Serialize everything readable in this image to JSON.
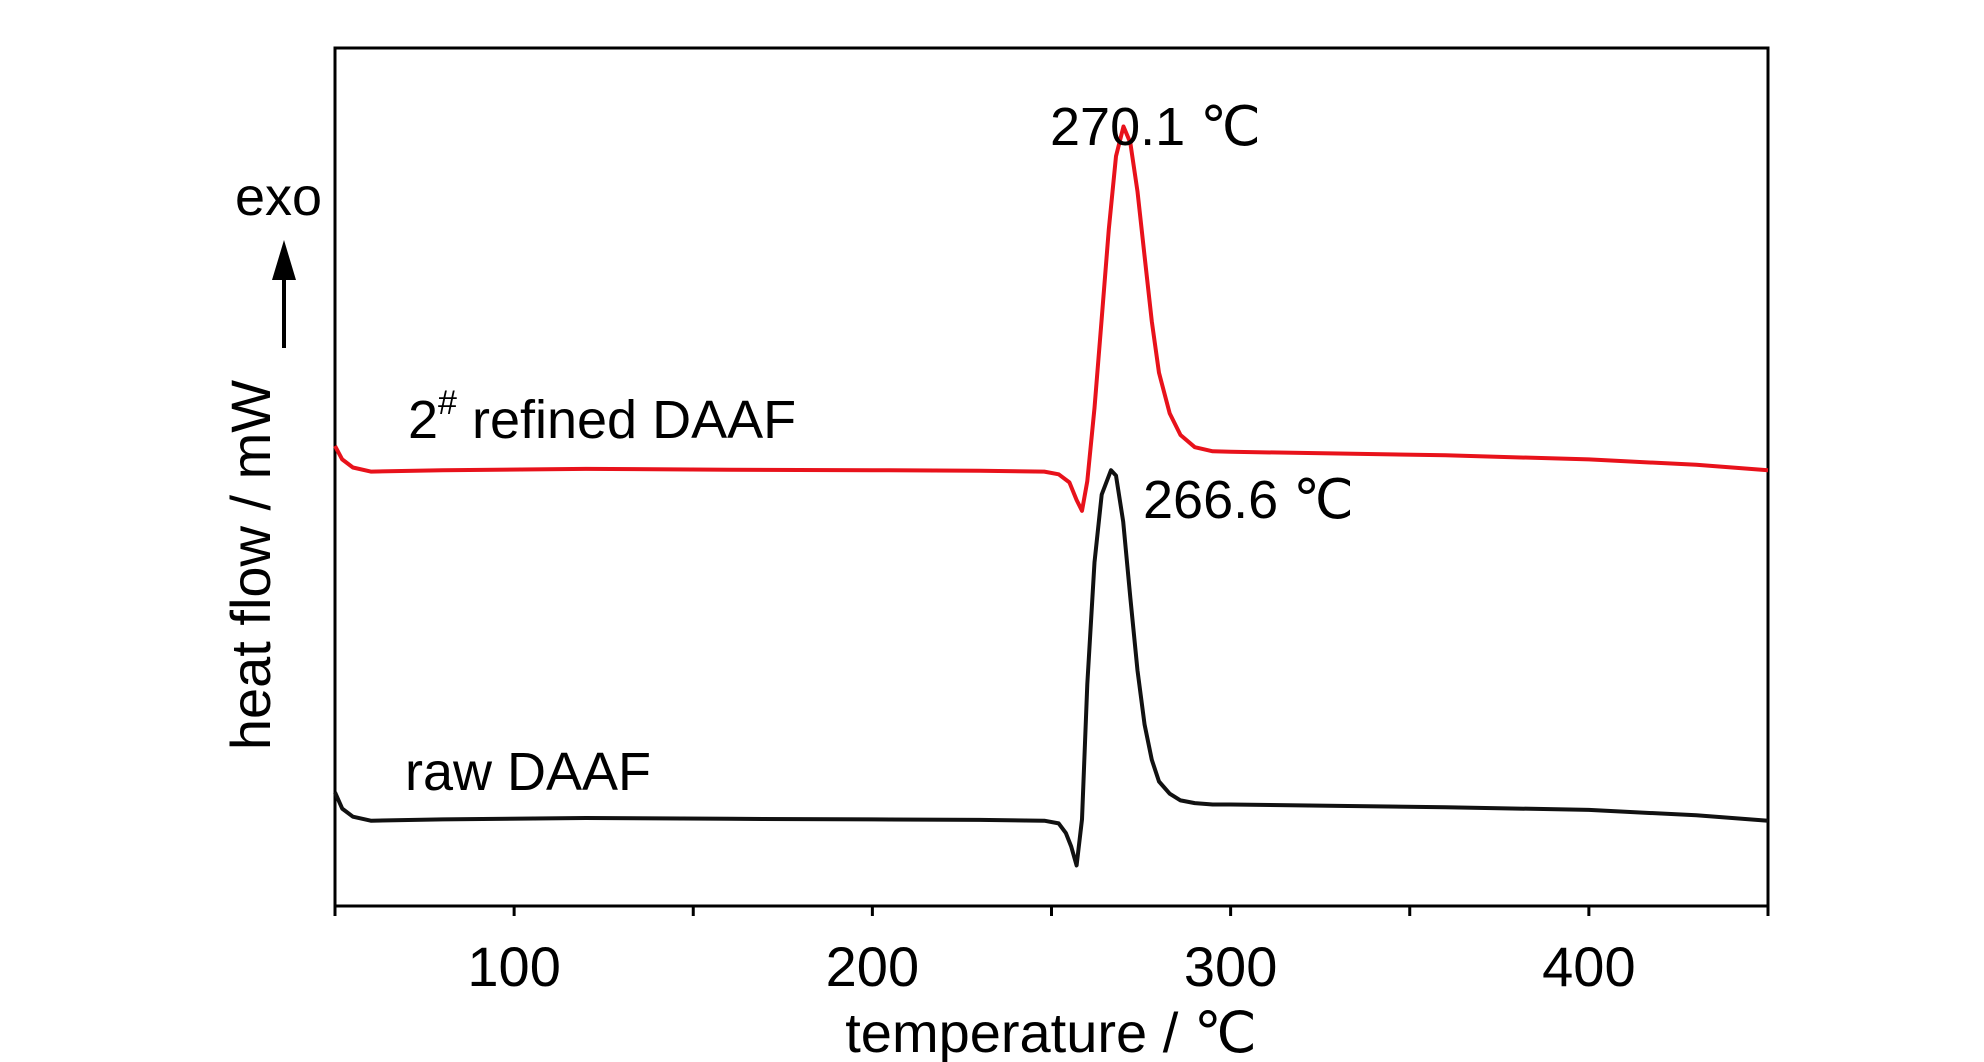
{
  "chart_data": {
    "type": "line",
    "title": "",
    "xlabel": "temperature / ℃",
    "ylabel": "heat flow / mW",
    "xlim": [
      50,
      450
    ],
    "x_ticks": [
      100,
      200,
      300,
      400
    ],
    "y_ticks_shown": false,
    "grid": false,
    "legend": "none",
    "exo_label": "exo",
    "series": [
      {
        "name": "2# refined DAAF",
        "color": "#e8121b",
        "x": [
          50,
          52,
          55,
          60,
          80,
          120,
          160,
          200,
          230,
          248,
          252,
          255,
          257,
          258.5,
          260,
          262,
          264,
          266,
          268,
          270.1,
          272,
          274,
          276,
          278,
          280,
          283,
          286,
          290,
          295,
          300,
          330,
          360,
          400,
          430,
          450
        ],
        "y": [
          0.48,
          0.43,
          0.4,
          0.385,
          0.39,
          0.395,
          0.392,
          0.39,
          0.388,
          0.385,
          0.375,
          0.345,
          0.28,
          0.24,
          0.35,
          0.62,
          0.95,
          1.28,
          1.55,
          1.66,
          1.6,
          1.42,
          1.18,
          0.94,
          0.75,
          0.6,
          0.52,
          0.475,
          0.46,
          0.458,
          0.452,
          0.445,
          0.43,
          0.41,
          0.39
        ]
      },
      {
        "name": "raw DAAF",
        "color": "#111111",
        "x": [
          50,
          52,
          55,
          60,
          80,
          120,
          160,
          200,
          230,
          248,
          252,
          254,
          255.5,
          257,
          258.5,
          260,
          262,
          264,
          266.6,
          268,
          270,
          272,
          274,
          276,
          278,
          280,
          283,
          286,
          290,
          295,
          300,
          330,
          360,
          400,
          430,
          450
        ],
        "y": [
          -0.8,
          -0.86,
          -0.89,
          -0.905,
          -0.9,
          -0.895,
          -0.898,
          -0.9,
          -0.902,
          -0.905,
          -0.915,
          -0.95,
          -1.0,
          -1.07,
          -0.9,
          -0.4,
          0.05,
          0.3,
          0.39,
          0.37,
          0.2,
          -0.08,
          -0.35,
          -0.55,
          -0.68,
          -0.76,
          -0.805,
          -0.83,
          -0.84,
          -0.845,
          -0.845,
          -0.85,
          -0.855,
          -0.865,
          -0.885,
          -0.905
        ]
      }
    ],
    "annotations": [
      {
        "name": "refined-peak",
        "text": "270.1 ℃",
        "x": 270.1,
        "y": 1.66
      },
      {
        "name": "raw-peak",
        "text": "266.6 ℃",
        "x": 266.6,
        "y": 0.39
      }
    ],
    "series_labels": [
      {
        "name": "refined",
        "base": "2",
        "sup": "#",
        "rest": " refined DAAF"
      },
      {
        "name": "raw",
        "text": "raw DAAF"
      }
    ]
  }
}
